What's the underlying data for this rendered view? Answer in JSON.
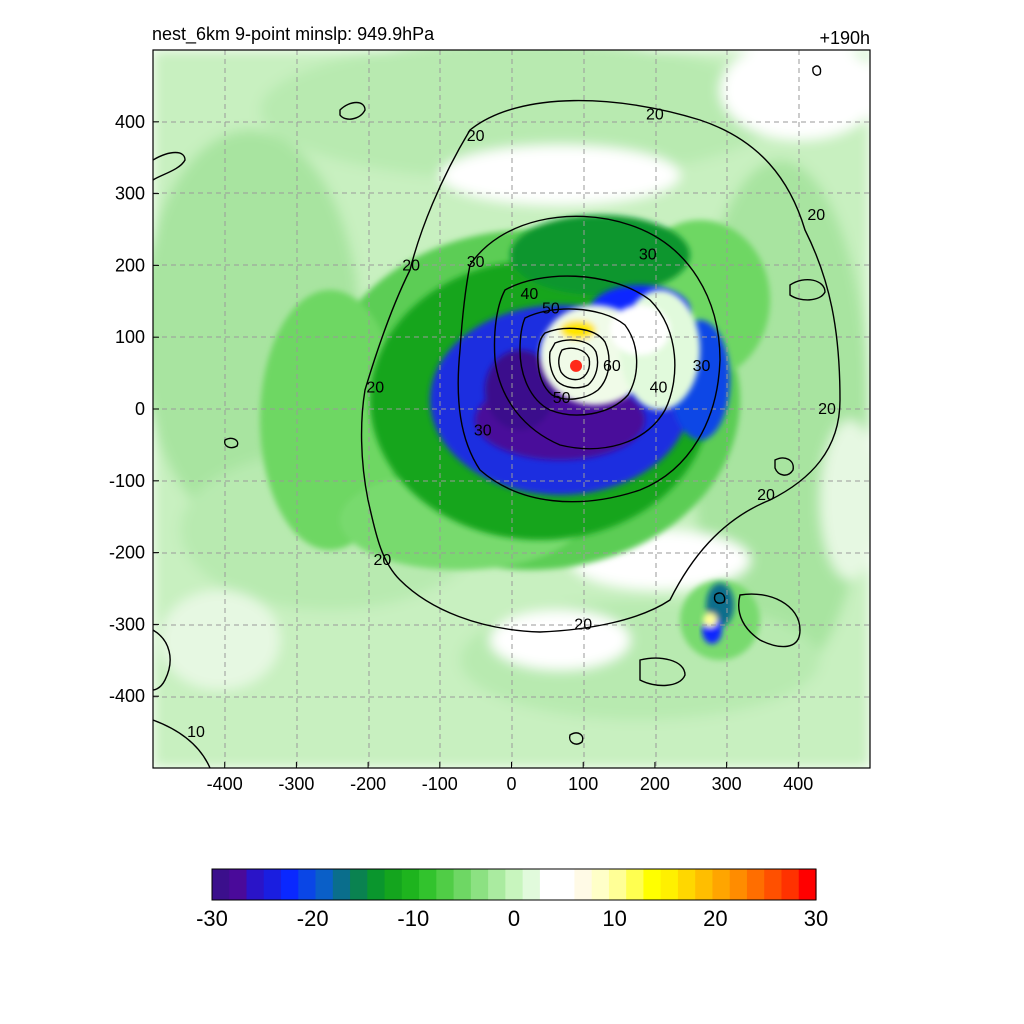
{
  "header": {
    "title": "nest_6km  9-point minslp: 949.9hPa",
    "forecast_hour": "+190h"
  },
  "chart_data": {
    "type": "heatmap",
    "title": "nest_6km  9-point minslp: 949.9hPa",
    "time_label": "+190h",
    "xlabel": "",
    "ylabel": "",
    "xlim": [
      -500,
      500
    ],
    "ylim": [
      -500,
      500
    ],
    "xticks": [
      -400,
      -300,
      -200,
      -100,
      0,
      100,
      200,
      300,
      400
    ],
    "yticks": [
      -400,
      -300,
      -200,
      -100,
      0,
      100,
      200,
      300,
      400
    ],
    "grid": true,
    "center_marker": {
      "x": 90,
      "y": 60,
      "color": "#ff2a1a"
    },
    "contour_levels": [
      10,
      20,
      30,
      40,
      50,
      60
    ],
    "contour_labels": [
      {
        "text": "20",
        "x": 200,
        "y": 410
      },
      {
        "text": "20",
        "x": -50,
        "y": 380
      },
      {
        "text": "20",
        "x": 425,
        "y": 270
      },
      {
        "text": "20",
        "x": -140,
        "y": 200
      },
      {
        "text": "20",
        "x": -190,
        "y": 30
      },
      {
        "text": "20",
        "x": 440,
        "y": 0
      },
      {
        "text": "20",
        "x": 355,
        "y": -120
      },
      {
        "text": "20",
        "x": -180,
        "y": -210
      },
      {
        "text": "20",
        "x": 100,
        "y": -300
      },
      {
        "text": "10",
        "x": -440,
        "y": -450
      },
      {
        "text": "30",
        "x": -50,
        "y": 205
      },
      {
        "text": "30",
        "x": 190,
        "y": 215
      },
      {
        "text": "30",
        "x": 265,
        "y": 60
      },
      {
        "text": "30",
        "x": -40,
        "y": -30
      },
      {
        "text": "40",
        "x": 25,
        "y": 160
      },
      {
        "text": "40",
        "x": 205,
        "y": 30
      },
      {
        "text": "50",
        "x": 55,
        "y": 140
      },
      {
        "text": "50",
        "x": 70,
        "y": 15
      },
      {
        "text": "60",
        "x": 140,
        "y": 60
      }
    ],
    "colorbar": {
      "min": -30,
      "max": 30,
      "tick_labels": [
        "-30",
        "-20",
        "-10",
        "0",
        "10",
        "20",
        "30"
      ],
      "colors": [
        "#3b0f8c",
        "#4a0a9a",
        "#2a14c8",
        "#1a1ee0",
        "#0a28ff",
        "#0a46e6",
        "#0a5fc8",
        "#0a6e8c",
        "#0a8250",
        "#0a962d",
        "#14a51e",
        "#1eb41e",
        "#32c32d",
        "#50cd46",
        "#6ed764",
        "#8ce182",
        "#aaeba0",
        "#c8f5be",
        "#e1fadc",
        "#ffffff",
        "#ffffff",
        "#fffae6",
        "#ffffc8",
        "#ffff96",
        "#ffff50",
        "#ffff00",
        "#fff000",
        "#ffd700",
        "#ffbe00",
        "#ffa500",
        "#ff8c00",
        "#ff6e00",
        "#ff5000",
        "#ff3200",
        "#ff0000"
      ]
    }
  }
}
